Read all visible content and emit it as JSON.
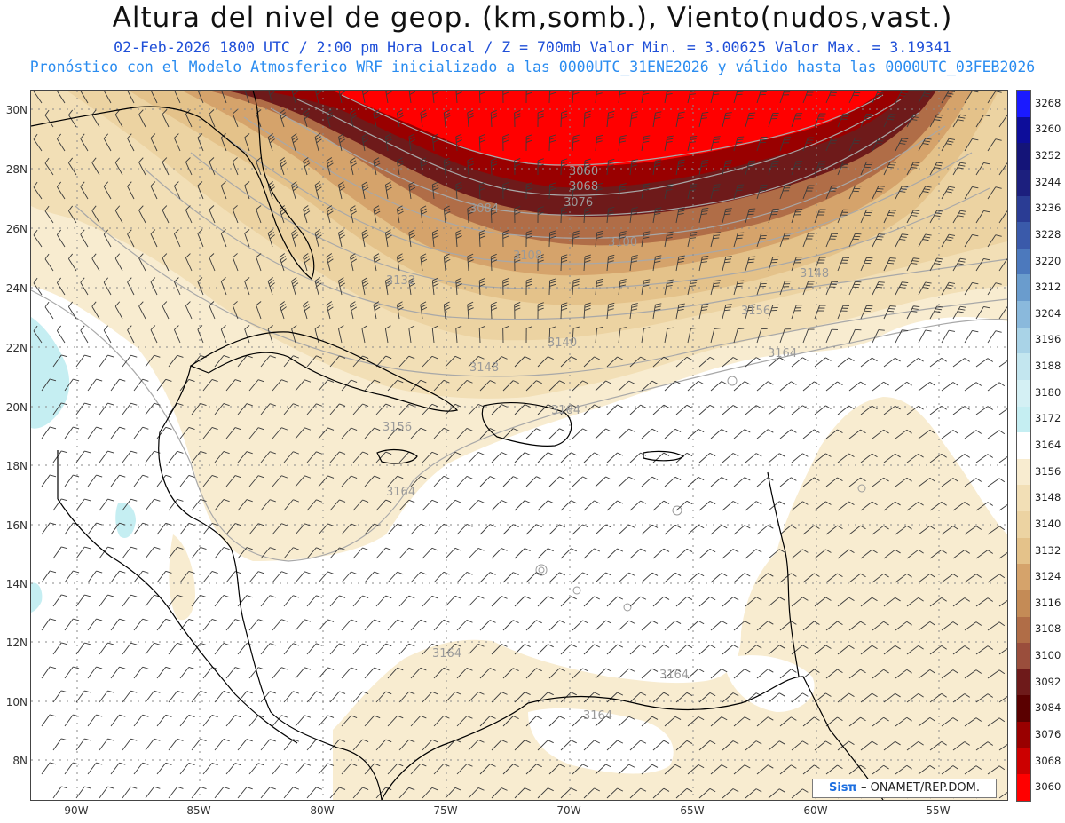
{
  "header": {
    "title": "Altura del nivel de geop. (km,somb.), Viento(nudos,vast.)",
    "subtitle_1": "02-Feb-2026  1800 UTC / 2:00 pm Hora Local / Z = 700mb   Valor Min. = 3.00625  Valor Max. = 3.19341",
    "subtitle_2": "Pronóstico con el Modelo Atmosferico WRF inicializado a las 0000UTC_31ENE2026 y válido hasta las  0000UTC_03FEB2026"
  },
  "map": {
    "lat_labels": [
      "30N",
      "28N",
      "26N",
      "24N",
      "22N",
      "20N",
      "18N",
      "16N",
      "14N",
      "12N",
      "10N",
      "8N"
    ],
    "lon_labels": [
      "90W",
      "85W",
      "80W",
      "75W",
      "70W",
      "65W",
      "60W",
      "55W"
    ],
    "contour_labels": [
      "3060",
      "3068",
      "3076",
      "3084",
      "3100",
      "3108",
      "3132",
      "3140",
      "3148",
      "3148",
      "3156",
      "3156",
      "3164",
      "3164",
      "3164",
      "3164",
      "3164",
      "3164"
    ],
    "credit": {
      "brand": "Sisπ",
      "org": "– ONAMET/REP.DOM."
    }
  },
  "colorbar": {
    "labels": [
      "3268",
      "3260",
      "3252",
      "3244",
      "3236",
      "3228",
      "3220",
      "3212",
      "3204",
      "3196",
      "3188",
      "3180",
      "3172",
      "3164",
      "3156",
      "3148",
      "3140",
      "3132",
      "3124",
      "3116",
      "3108",
      "3100",
      "3092",
      "3084",
      "3076",
      "3068",
      "3060"
    ],
    "colors": [
      "#1a1aff",
      "#0d0d9a",
      "#141478",
      "#1c1f7e",
      "#2a3c94",
      "#3a5aaa",
      "#4c79bd",
      "#6a9ccd",
      "#8ab9dc",
      "#a9d3e7",
      "#c3e6ef",
      "#d4f0f4",
      "#c5eef2",
      "#ffffff",
      "#f8ecd0",
      "#f2dfb6",
      "#ecd3a2",
      "#e4c28a",
      "#d5a36b",
      "#c48b56",
      "#b06d47",
      "#9a4e3c",
      "#6e1a1a",
      "#5a0000",
      "#990000",
      "#cc0000",
      "#ff0000"
    ]
  }
}
